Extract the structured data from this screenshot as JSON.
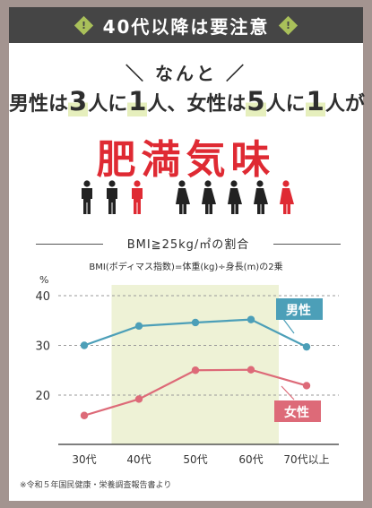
{
  "header": {
    "title": "40代以降は要注意",
    "badge": "!"
  },
  "kicker": "＼ なんと ／",
  "stat": {
    "t1": "男性は",
    "n1": "3",
    "t2": "人に",
    "n2": "1",
    "t3": "人、女性は",
    "n3": "5",
    "t4": "人に",
    "n4": "1",
    "t5": "人が"
  },
  "headline": "肥満気味",
  "people_icons": {
    "male": [
      "person-man-icon",
      "person-man-icon",
      "person-man-highlight-icon"
    ],
    "female": [
      "person-woman-icon",
      "person-woman-icon",
      "person-woman-icon",
      "person-woman-icon",
      "person-woman-highlight-icon"
    ]
  },
  "colors": {
    "header": "#454545",
    "accent_green": "#a9c05a",
    "highlight": "#e6efbd",
    "red": "#df2a33",
    "male": "#4c9fb8",
    "female": "#dd6a78",
    "band": "#eef2d6"
  },
  "chart_data": {
    "type": "line",
    "title": "BMI≧25kg/㎡の割合",
    "subtitle": "BMI(ボディマス指数)=体重(kg)÷身長(m)の2乗",
    "ylabel": "%",
    "categories": [
      "30代",
      "40代",
      "50代",
      "60代",
      "70代以上"
    ],
    "ylim": [
      10,
      40
    ],
    "yticks": [
      20,
      30,
      40
    ],
    "series": [
      {
        "name": "男性",
        "values": [
          30.0,
          33.9,
          34.6,
          35.2,
          29.7
        ]
      },
      {
        "name": "女性",
        "values": [
          15.9,
          19.2,
          25.0,
          25.1,
          21.9
        ]
      }
    ],
    "highlight_band": [
      "40代",
      "60代"
    ],
    "grid": true
  },
  "note": "※令和５年国民健康・栄養調査報告書より"
}
